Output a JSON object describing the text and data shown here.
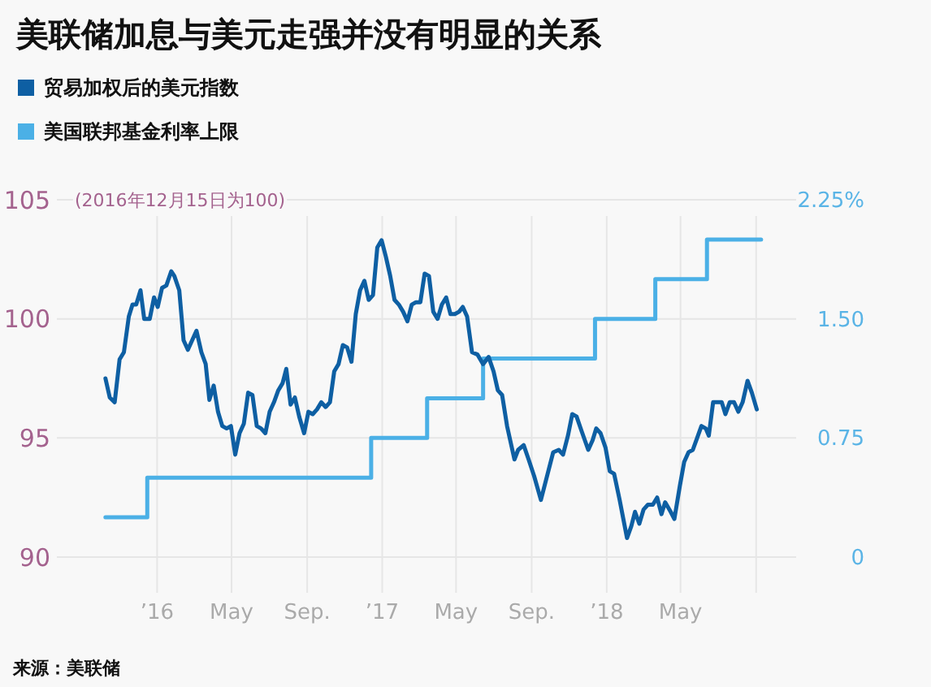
{
  "chart_data": {
    "type": "line",
    "title": "美联储加息与美元走强并没有明显的关系",
    "ylabel": "(2016年12月15日为100)",
    "annotations": [
      "来源：美联储"
    ],
    "legend": "top left",
    "grid": true,
    "xlim": [
      "2015-07-22",
      "2018-11-05"
    ],
    "xticks": [
      {
        "value": "2016-01-01",
        "label": "’16"
      },
      {
        "value": "2016-05-01",
        "label": "May"
      },
      {
        "value": "2016-09-01",
        "label": "Sep."
      },
      {
        "value": "2017-01-01",
        "label": "’17"
      },
      {
        "value": "2017-05-01",
        "label": "May"
      },
      {
        "value": "2017-09-01",
        "label": "Sep."
      },
      {
        "value": "2018-01-01",
        "label": "’18"
      },
      {
        "value": "2018-05-01",
        "label": "May"
      },
      {
        "value": "2018-09-01",
        "label": null
      }
    ],
    "ylim": [
      88.5,
      105
    ],
    "yticks": [
      90,
      95,
      100,
      105
    ],
    "y2lim": [
      -0.225,
      2.25
    ],
    "y2ticks": [
      0,
      {
        "value": 0.75,
        "label": "0.75"
      },
      {
        "value": 1.5,
        "label": "1.50"
      },
      {
        "value": 2.25,
        "label": "2.25%"
      }
    ],
    "series": [
      {
        "name": "贸易加权后的美元指数",
        "color": "#0e5fa3",
        "x": [
          "2015-10-09",
          "2015-10-16",
          "2015-10-24",
          "2015-11-01",
          "2015-11-08",
          "2015-11-16",
          "2015-11-22",
          "2015-11-28",
          "2015-12-05",
          "2015-12-11",
          "2015-12-20",
          "2015-12-27",
          "2016-01-02",
          "2016-01-09",
          "2016-01-16",
          "2016-01-24",
          "2016-01-29",
          "2016-02-06",
          "2016-02-13",
          "2016-02-20",
          "2016-02-27",
          "2016-03-05",
          "2016-03-13",
          "2016-03-20",
          "2016-03-26",
          "2016-04-02",
          "2016-04-09",
          "2016-04-16",
          "2016-04-23",
          "2016-04-30",
          "2016-05-07",
          "2016-05-14",
          "2016-05-21",
          "2016-05-28",
          "2016-06-04",
          "2016-06-11",
          "2016-06-18",
          "2016-06-25",
          "2016-07-02",
          "2016-07-09",
          "2016-07-16",
          "2016-07-23",
          "2016-07-29",
          "2016-08-05",
          "2016-08-12",
          "2016-08-19",
          "2016-08-27",
          "2016-09-03",
          "2016-09-10",
          "2016-09-17",
          "2016-09-24",
          "2016-10-01",
          "2016-10-08",
          "2016-10-15",
          "2016-10-22",
          "2016-10-29",
          "2016-11-05",
          "2016-11-12",
          "2016-11-19",
          "2016-11-26",
          "2016-12-03",
          "2016-12-10",
          "2016-12-17",
          "2016-12-24",
          "2016-12-31",
          "2017-01-07",
          "2017-01-14",
          "2017-01-21",
          "2017-01-28",
          "2017-02-04",
          "2017-02-11",
          "2017-02-18",
          "2017-02-25",
          "2017-03-04",
          "2017-03-11",
          "2017-03-18",
          "2017-03-25",
          "2017-04-01",
          "2017-04-08",
          "2017-04-15",
          "2017-04-22",
          "2017-04-29",
          "2017-05-06",
          "2017-05-12",
          "2017-05-19",
          "2017-05-27",
          "2017-06-05",
          "2017-06-14",
          "2017-06-23",
          "2017-07-01",
          "2017-07-08",
          "2017-07-15",
          "2017-07-23",
          "2017-08-04",
          "2017-08-10",
          "2017-08-19",
          "2017-08-27",
          "2017-09-05",
          "2017-09-16",
          "2017-09-24",
          "2017-10-06",
          "2017-10-15",
          "2017-10-22",
          "2017-10-30",
          "2017-11-06",
          "2017-11-13",
          "2017-11-21",
          "2017-12-02",
          "2017-12-09",
          "2017-12-15",
          "2017-12-22",
          "2017-12-30",
          "2018-01-06",
          "2018-01-13",
          "2018-01-22",
          "2018-01-28",
          "2018-02-03",
          "2018-02-10",
          "2018-02-16",
          "2018-02-23",
          "2018-03-02",
          "2018-03-09",
          "2018-03-17",
          "2018-03-24",
          "2018-03-31",
          "2018-04-06",
          "2018-04-15",
          "2018-04-21",
          "2018-04-30",
          "2018-05-07",
          "2018-05-14",
          "2018-05-21",
          "2018-05-28",
          "2018-06-04",
          "2018-06-11",
          "2018-06-16",
          "2018-06-23",
          "2018-06-30",
          "2018-07-07",
          "2018-07-13",
          "2018-07-20",
          "2018-07-27",
          "2018-08-03",
          "2018-08-10",
          "2018-08-18",
          "2018-08-25",
          "2018-09-02"
        ],
        "values": [
          97.5,
          96.7,
          96.5,
          98.3,
          98.6,
          100.1,
          100.6,
          100.6,
          101.2,
          100.0,
          100.0,
          100.9,
          100.5,
          101.3,
          101.4,
          102.0,
          101.8,
          101.2,
          99.1,
          98.7,
          99.1,
          99.5,
          98.6,
          98.1,
          96.6,
          97.2,
          96.1,
          95.5,
          95.4,
          95.5,
          94.3,
          95.2,
          95.6,
          96.9,
          96.8,
          95.5,
          95.4,
          95.2,
          96.1,
          96.5,
          97.0,
          97.3,
          97.9,
          96.4,
          96.7,
          95.9,
          95.2,
          96.1,
          96.0,
          96.2,
          96.5,
          96.3,
          96.5,
          97.8,
          98.1,
          98.9,
          98.8,
          98.2,
          100.2,
          101.2,
          101.6,
          100.8,
          101.0,
          103.0,
          103.3,
          102.6,
          101.8,
          100.8,
          100.6,
          100.3,
          99.9,
          100.6,
          100.7,
          100.7,
          101.9,
          101.8,
          100.3,
          100.0,
          100.6,
          100.9,
          100.2,
          100.2,
          100.3,
          100.5,
          100.1,
          98.6,
          98.5,
          98.1,
          98.4,
          97.8,
          97.0,
          96.8,
          95.5,
          94.1,
          94.5,
          94.7,
          94.1,
          93.4,
          92.4,
          93.2,
          94.4,
          94.5,
          94.3,
          95.1,
          96.0,
          95.9,
          95.3,
          94.5,
          94.9,
          95.4,
          95.2,
          94.6,
          93.6,
          93.5,
          92.4,
          91.6,
          90.8,
          91.3,
          91.9,
          91.4,
          92.0,
          92.2,
          92.2,
          92.5,
          91.8,
          92.3,
          91.9,
          91.6,
          93.0,
          94.0,
          94.4,
          94.5,
          95.0,
          95.5,
          95.4,
          95.1,
          96.5,
          96.5,
          96.5,
          96.0,
          96.5,
          96.5,
          96.1,
          96.5,
          97.4,
          96.9,
          96.2
        ]
      },
      {
        "name": "美国联邦基金利率上限",
        "color": "#4bb0e6",
        "type": "step",
        "axis": "y2",
        "x": [
          "2015-10-09",
          "2015-12-16",
          "2016-12-14",
          "2017-03-15",
          "2017-06-14",
          "2017-12-13",
          "2018-03-21",
          "2018-06-13",
          "2018-09-09"
        ],
        "values": [
          0.25,
          0.5,
          0.75,
          1.0,
          1.25,
          1.5,
          1.75,
          2.0,
          2.0
        ]
      }
    ]
  }
}
